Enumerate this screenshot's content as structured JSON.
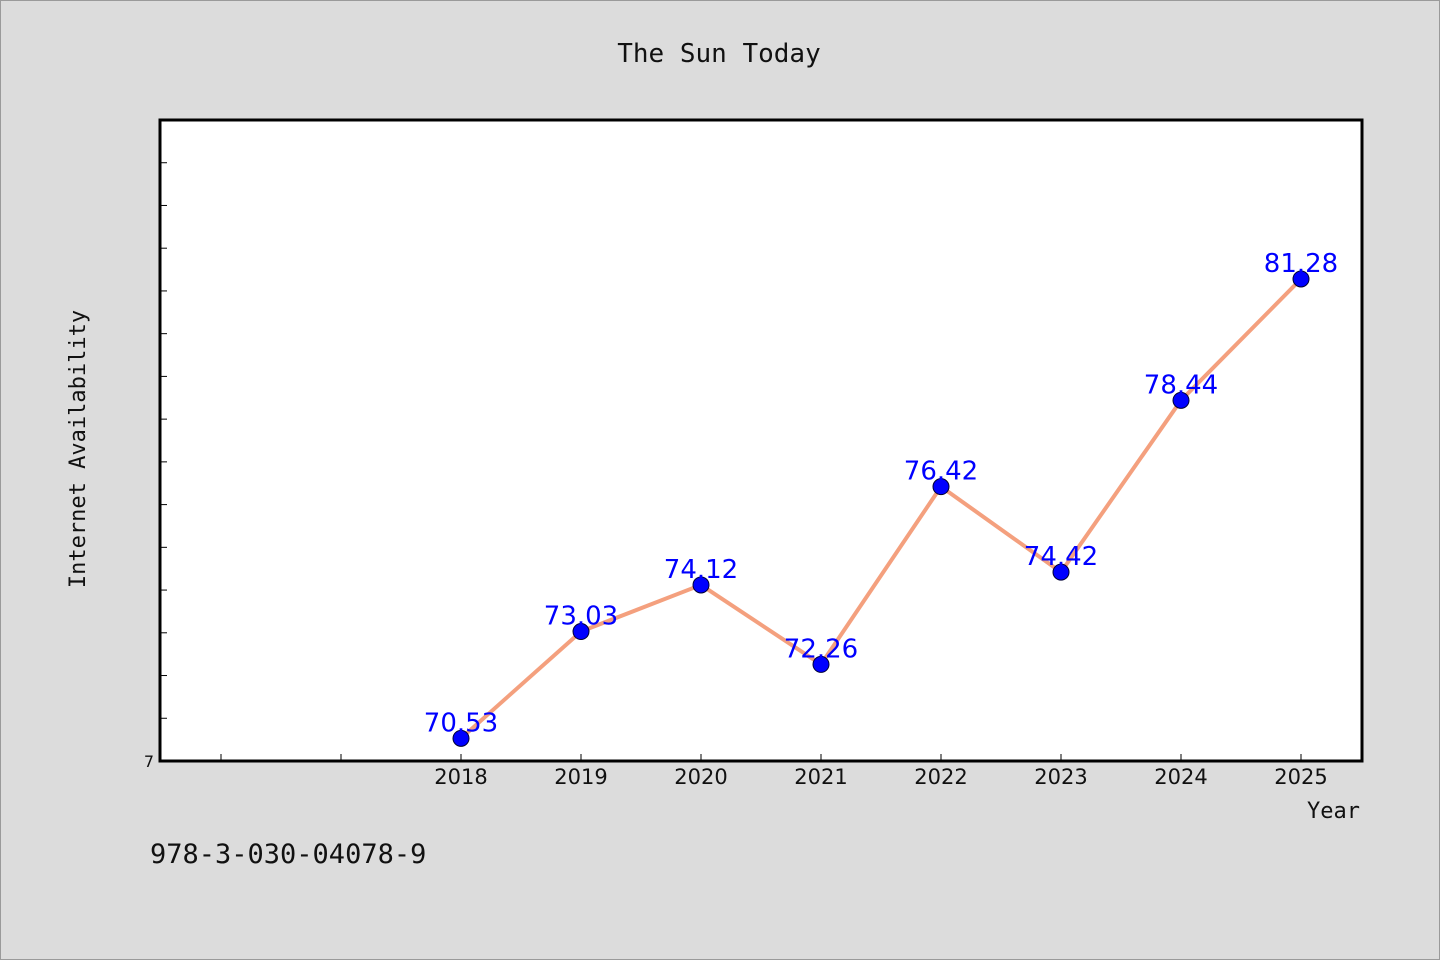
{
  "footer_text": "978-3-030-04078-9",
  "chart_data": {
    "type": "line",
    "title": "The Sun Today",
    "xlabel": "Year",
    "ylabel": "Internet Availability",
    "x": [
      "2018",
      "2019",
      "2020",
      "2021",
      "2022",
      "2023",
      "2024",
      "2025"
    ],
    "x_ticks_extra_before": 2,
    "series": [
      {
        "values": [
          70.53,
          73.03,
          74.12,
          72.26,
          76.42,
          74.42,
          78.44,
          81.28
        ],
        "data_labels": [
          "70.53",
          "73.03",
          "74.12",
          "72.26",
          "76.42",
          "74.42",
          "78.44",
          "81.28"
        ],
        "line_color": "#f4a07e",
        "marker_color": "#0000ff"
      }
    ],
    "ylim": [
      70,
      85
    ],
    "y_tick_labels_visible": [
      "7"
    ],
    "y_minor_tick_step": 1,
    "grid": false,
    "legend": "none",
    "plot_background": "#ffffff",
    "figure_background": "#dcdcdc"
  }
}
